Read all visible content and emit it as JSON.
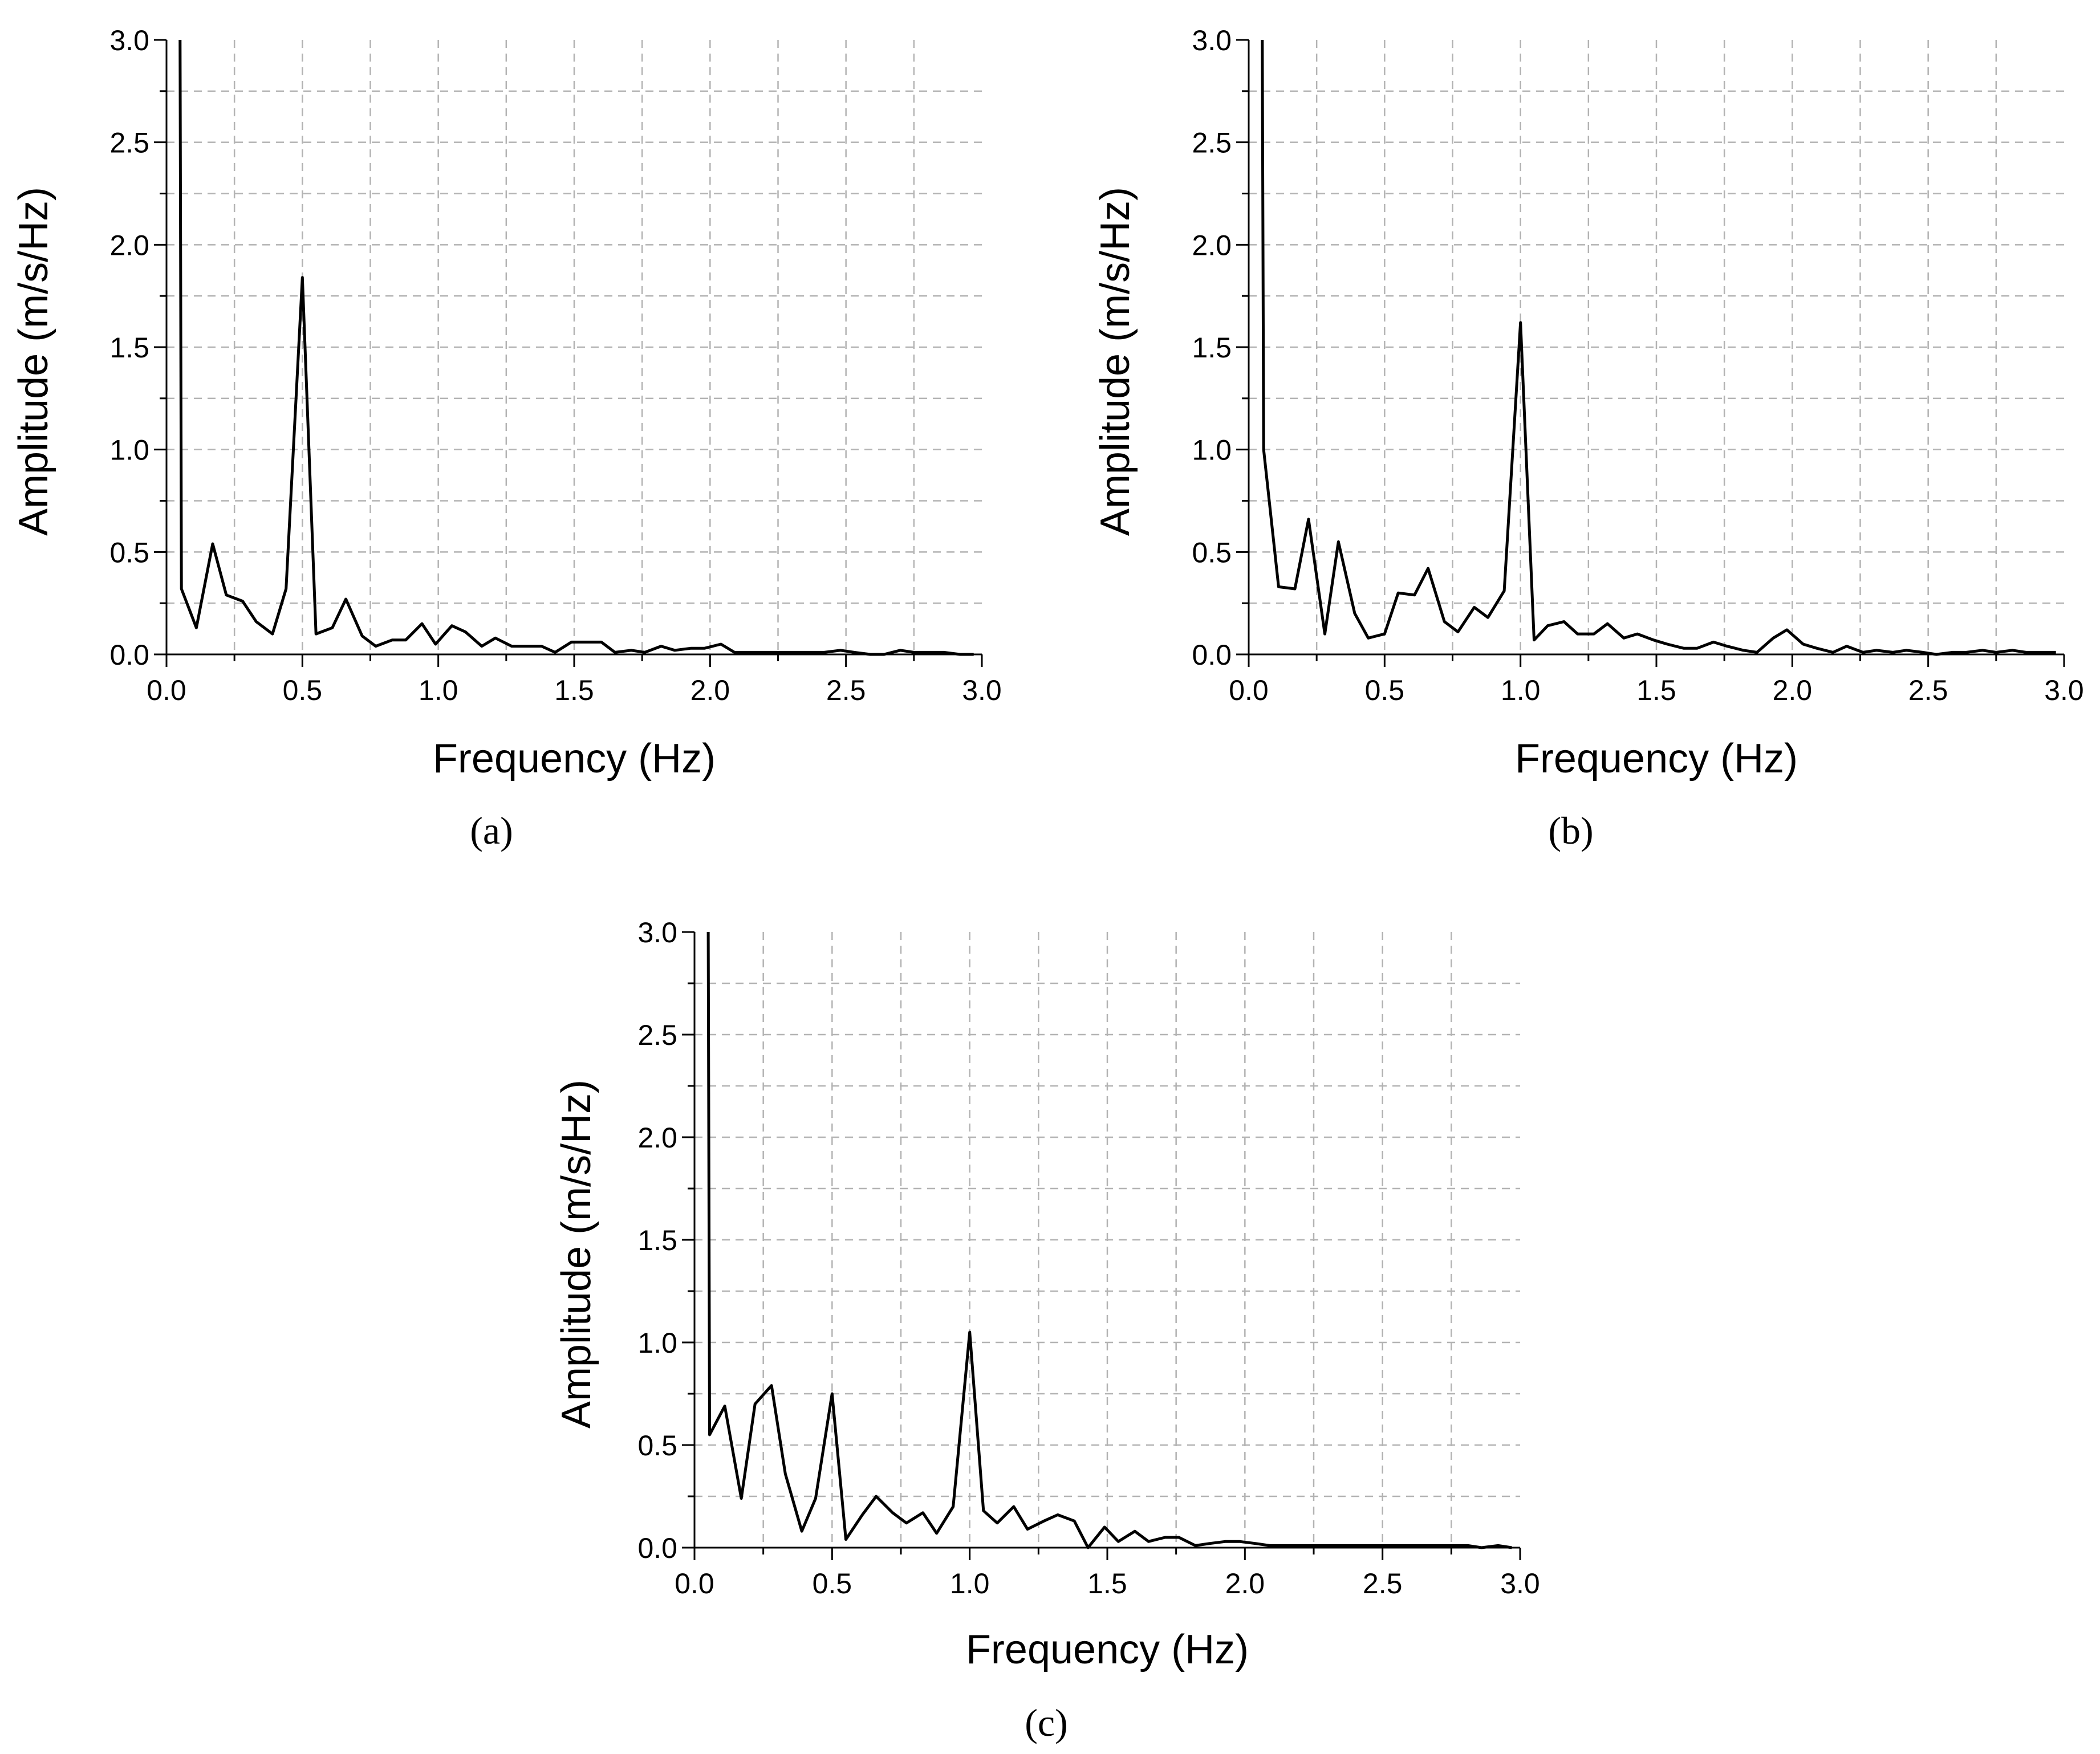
{
  "chart_data": [
    {
      "type": "line",
      "panel_label": "(a)",
      "xlabel": "Frequency (Hz)",
      "ylabel": "Amplitude (m/s/Hz)",
      "xlim": [
        0,
        3.0
      ],
      "ylim": [
        0,
        3.0
      ],
      "xticks": [
        "0.0",
        "0.5",
        "1.0",
        "1.5",
        "2.0",
        "2.5",
        "3.0"
      ],
      "yticks": [
        "0.0",
        "0.5",
        "1.0",
        "1.5",
        "2.0",
        "2.5",
        "3.0"
      ],
      "grid": true,
      "series": [
        {
          "x": [
            0.05,
            0.055,
            0.11,
            0.17,
            0.22,
            0.28,
            0.33,
            0.39,
            0.44,
            0.5,
            0.55,
            0.61,
            0.66,
            0.72,
            0.77,
            0.83,
            0.88,
            0.94,
            0.99,
            1.05,
            1.1,
            1.16,
            1.21,
            1.27,
            1.32,
            1.38,
            1.43,
            1.49,
            1.54,
            1.6,
            1.65,
            1.71,
            1.76,
            1.82,
            1.87,
            1.93,
            1.98,
            2.04,
            2.09,
            2.15,
            2.2,
            2.26,
            2.31,
            2.37,
            2.42,
            2.48,
            2.53,
            2.59,
            2.64,
            2.7,
            2.75,
            2.81,
            2.86,
            2.92,
            2.97
          ],
          "y": [
            3.0,
            0.32,
            0.13,
            0.54,
            0.29,
            0.26,
            0.16,
            0.1,
            0.32,
            1.84,
            0.1,
            0.13,
            0.27,
            0.09,
            0.04,
            0.07,
            0.07,
            0.15,
            0.05,
            0.14,
            0.11,
            0.04,
            0.08,
            0.04,
            0.04,
            0.04,
            0.01,
            0.06,
            0.06,
            0.06,
            0.01,
            0.02,
            0.01,
            0.04,
            0.02,
            0.03,
            0.03,
            0.05,
            0.01,
            0.01,
            0.01,
            0.01,
            0.01,
            0.01,
            0.01,
            0.02,
            0.01,
            0.0,
            0.0,
            0.02,
            0.01,
            0.01,
            0.01,
            0.0,
            0.0
          ]
        }
      ]
    },
    {
      "type": "line",
      "panel_label": "(b)",
      "xlabel": "Frequency (Hz)",
      "ylabel": "Amplitude (m/s/Hz)",
      "xlim": [
        0,
        3.0
      ],
      "ylim": [
        0,
        3.0
      ],
      "xticks": [
        "0.0",
        "0.5",
        "1.0",
        "1.5",
        "2.0",
        "2.5",
        "3.0"
      ],
      "yticks": [
        "0.0",
        "0.5",
        "1.0",
        "1.5",
        "2.0",
        "2.5",
        "3.0"
      ],
      "grid": true,
      "series": [
        {
          "x": [
            0.05,
            0.055,
            0.11,
            0.17,
            0.22,
            0.28,
            0.33,
            0.39,
            0.44,
            0.5,
            0.55,
            0.61,
            0.66,
            0.72,
            0.77,
            0.83,
            0.88,
            0.94,
            1.0,
            1.05,
            1.1,
            1.16,
            1.21,
            1.27,
            1.32,
            1.38,
            1.43,
            1.49,
            1.54,
            1.6,
            1.65,
            1.71,
            1.76,
            1.82,
            1.87,
            1.93,
            1.98,
            2.04,
            2.09,
            2.15,
            2.2,
            2.26,
            2.31,
            2.37,
            2.42,
            2.48,
            2.53,
            2.59,
            2.64,
            2.7,
            2.75,
            2.81,
            2.86,
            2.92,
            2.97
          ],
          "y": [
            3.0,
            1.0,
            0.33,
            0.32,
            0.66,
            0.1,
            0.55,
            0.2,
            0.08,
            0.1,
            0.3,
            0.29,
            0.42,
            0.16,
            0.11,
            0.23,
            0.18,
            0.31,
            1.62,
            0.07,
            0.14,
            0.16,
            0.1,
            0.1,
            0.15,
            0.08,
            0.1,
            0.07,
            0.05,
            0.03,
            0.03,
            0.06,
            0.04,
            0.02,
            0.01,
            0.08,
            0.12,
            0.05,
            0.03,
            0.01,
            0.04,
            0.01,
            0.02,
            0.01,
            0.02,
            0.01,
            0.0,
            0.01,
            0.01,
            0.02,
            0.01,
            0.02,
            0.01,
            0.01,
            0.01
          ]
        }
      ]
    },
    {
      "type": "line",
      "panel_label": "(c)",
      "xlabel": "Frequency (Hz)",
      "ylabel": "Amplitude (m/s/Hz)",
      "xlim": [
        0,
        3.0
      ],
      "ylim": [
        0,
        3.0
      ],
      "xticks": [
        "0.0",
        "0.5",
        "1.0",
        "1.5",
        "2.0",
        "2.5",
        "3.0"
      ],
      "yticks": [
        "0.0",
        "0.5",
        "1.0",
        "1.5",
        "2.0",
        "2.5",
        "3.0"
      ],
      "grid": true,
      "series": [
        {
          "x": [
            0.05,
            0.055,
            0.11,
            0.17,
            0.22,
            0.28,
            0.33,
            0.39,
            0.44,
            0.5,
            0.55,
            0.61,
            0.66,
            0.72,
            0.77,
            0.83,
            0.88,
            0.94,
            1.0,
            1.05,
            1.1,
            1.16,
            1.21,
            1.27,
            1.32,
            1.38,
            1.43,
            1.49,
            1.54,
            1.6,
            1.65,
            1.71,
            1.76,
            1.82,
            1.87,
            1.93,
            1.98,
            2.04,
            2.09,
            2.15,
            2.2,
            2.26,
            2.31,
            2.37,
            2.42,
            2.48,
            2.53,
            2.59,
            2.64,
            2.7,
            2.75,
            2.81,
            2.86,
            2.92,
            2.97
          ],
          "y": [
            3.0,
            0.55,
            0.69,
            0.24,
            0.7,
            0.79,
            0.36,
            0.08,
            0.24,
            0.75,
            0.04,
            0.16,
            0.25,
            0.17,
            0.12,
            0.17,
            0.07,
            0.2,
            1.05,
            0.18,
            0.12,
            0.2,
            0.09,
            0.13,
            0.16,
            0.13,
            0.0,
            0.1,
            0.03,
            0.08,
            0.03,
            0.05,
            0.05,
            0.01,
            0.02,
            0.03,
            0.03,
            0.02,
            0.01,
            0.01,
            0.01,
            0.01,
            0.01,
            0.01,
            0.01,
            0.01,
            0.01,
            0.01,
            0.01,
            0.01,
            0.01,
            0.01,
            0.0,
            0.01,
            0.0
          ]
        }
      ]
    }
  ]
}
